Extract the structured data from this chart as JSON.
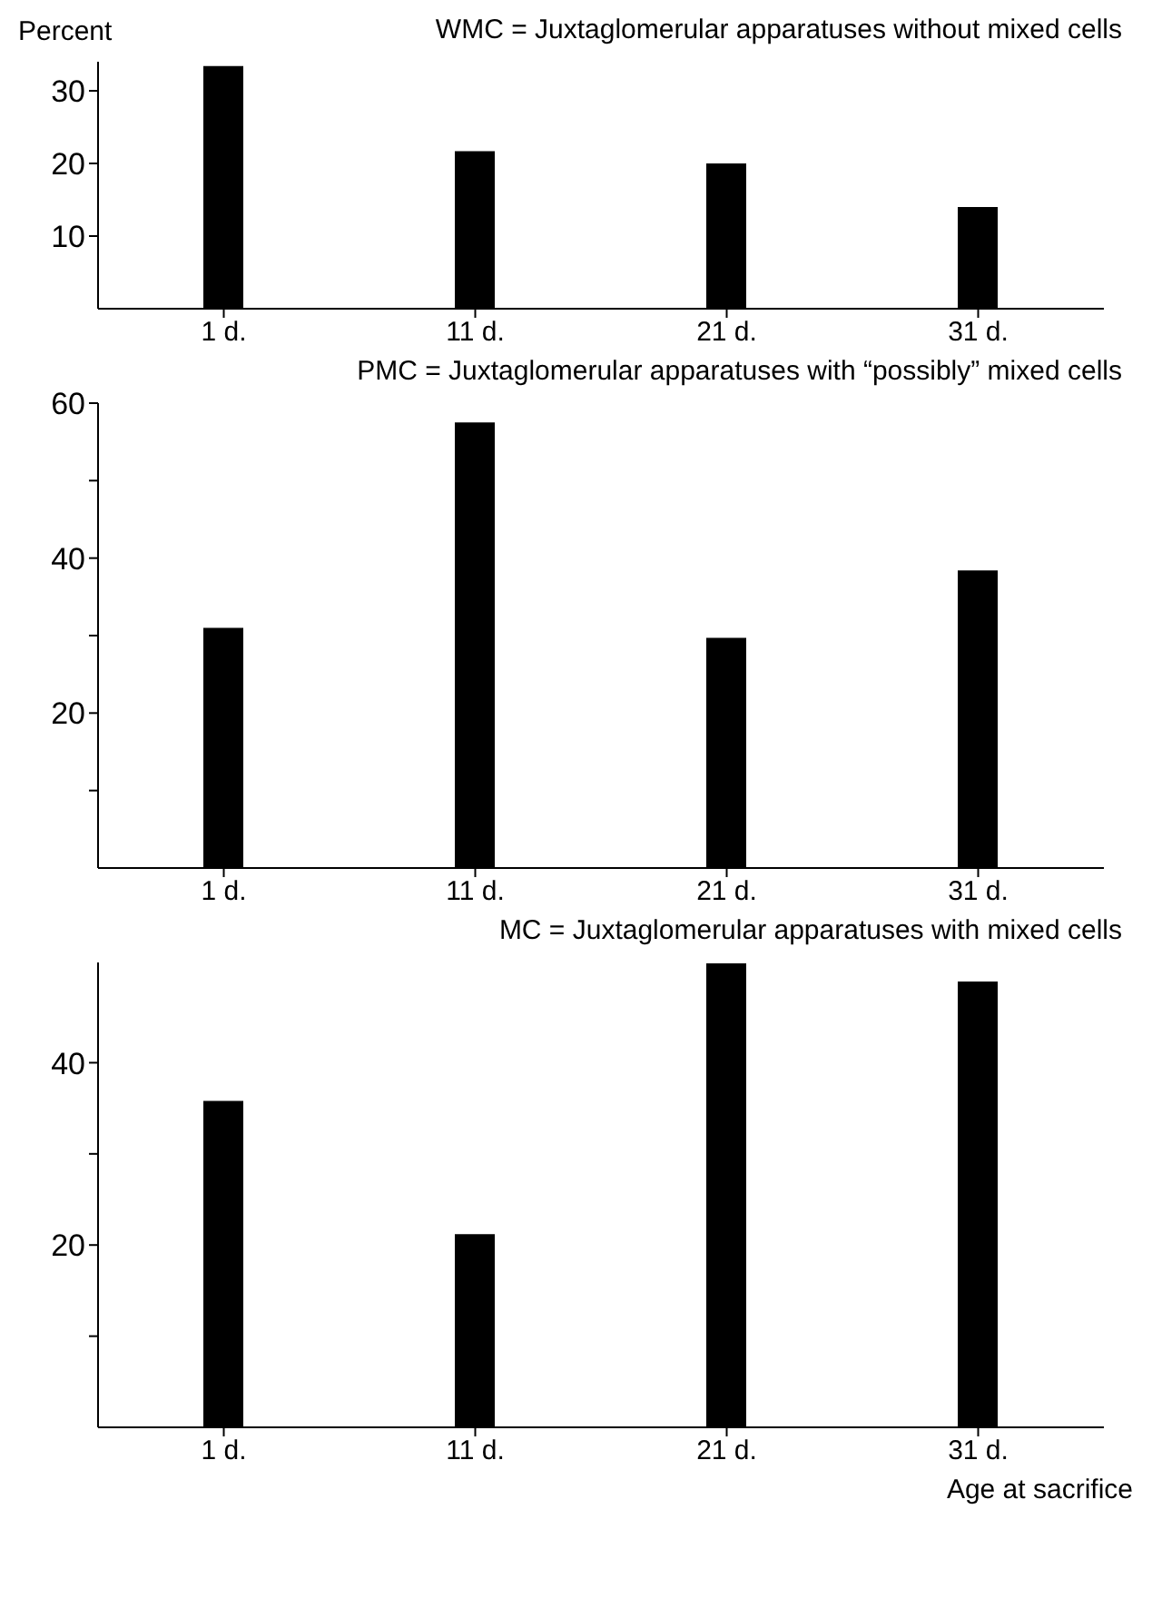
{
  "chart_data": [
    {
      "type": "bar",
      "title": "WMC = Juxtaglomerular apparatuses without mixed cells",
      "ylabel": "Percent",
      "categories": [
        "1 d.",
        "11 d.",
        "21 d.",
        "31 d."
      ],
      "values": [
        33.4,
        21.7,
        20.0,
        14.0
      ],
      "color": "#000000",
      "ylim": [
        0,
        34
      ],
      "yticks": [
        10,
        20,
        30
      ],
      "grid": false
    },
    {
      "type": "bar",
      "title": "PMC = Juxtaglomerular apparatuses with “possibly” mixed cells",
      "categories": [
        "1 d.",
        "11 d.",
        "21 d.",
        "31 d."
      ],
      "values": [
        31.0,
        57.5,
        29.7,
        38.4
      ],
      "color": "#000000",
      "ylim": [
        0,
        60
      ],
      "yticks": [
        {
          "value": 10,
          "label": null
        },
        20,
        {
          "value": 30,
          "label": null
        },
        40,
        {
          "value": 50,
          "label": null
        },
        60
      ],
      "grid": false
    },
    {
      "type": "bar",
      "title": "MC = Juxtaglomerular apparatuses with mixed cells",
      "xlabel": "Age at sacrifice",
      "categories": [
        "1 d.",
        "11 d.",
        "21 d.",
        "31 d."
      ],
      "values": [
        35.8,
        21.2,
        50.9,
        48.9
      ],
      "color": "#000000",
      "ylim": [
        0,
        51
      ],
      "yticks": [
        {
          "value": 10,
          "label": null
        },
        20,
        {
          "value": 30,
          "label": null
        },
        40
      ],
      "grid": false
    }
  ]
}
